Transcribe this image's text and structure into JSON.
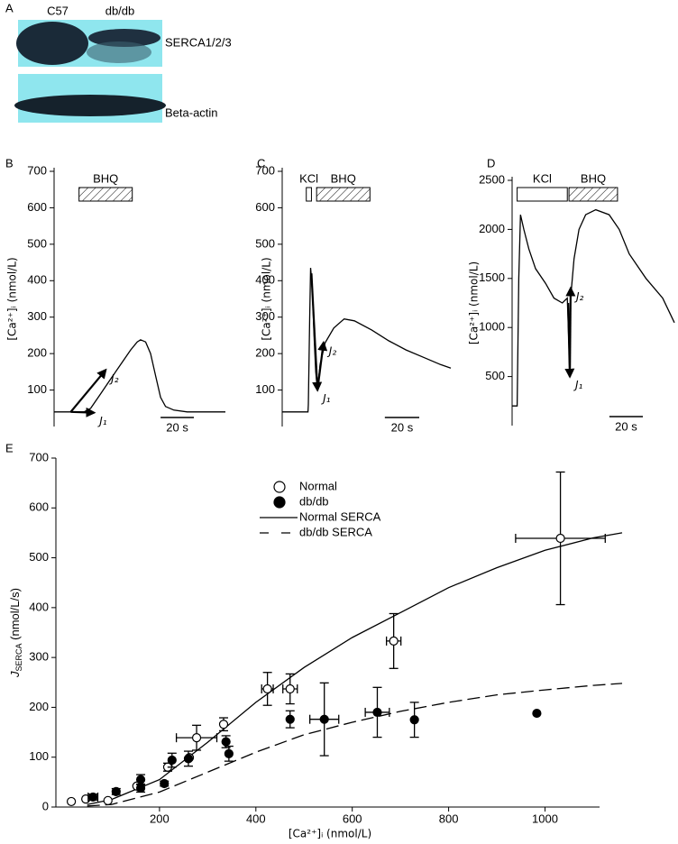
{
  "panel_labels": [
    "A",
    "B",
    "C",
    "D",
    "E"
  ],
  "blot": {
    "lanes": [
      "C57",
      "db/db"
    ],
    "bands": [
      "SERCA1/2/3",
      "Beta-actin"
    ]
  },
  "chart_data": [
    {
      "type": "line",
      "y_label": "[Ca²⁺]ᵢ (nmol/L)",
      "x": [
        0,
        18,
        22,
        28,
        34,
        40,
        46,
        50,
        52,
        55,
        58,
        61,
        64,
        67,
        72,
        80,
        103
      ],
      "series": [
        {
          "color": "#000000",
          "values": [
            40,
            40,
            50,
            90,
            130,
            170,
            210,
            232,
            238,
            232,
            200,
            140,
            80,
            55,
            45,
            40,
            40
          ]
        }
      ],
      "xlim": [
        0,
        103
      ],
      "ylim": [
        0,
        700
      ],
      "yticks": [
        100,
        200,
        300,
        400,
        500,
        600,
        700
      ],
      "treatments": [
        {
          "label": "BHQ",
          "start": 15,
          "end": 47,
          "hatched": true
        }
      ],
      "arrows": [
        {
          "label": "J₁",
          "from": [
            10,
            40
          ],
          "to": [
            24,
            38
          ]
        },
        {
          "label": "J₂",
          "from": [
            10,
            40
          ],
          "to": [
            31,
            155
          ]
        }
      ],
      "scale_bar": {
        "value": 20,
        "label": "20 s"
      }
    },
    {
      "type": "line",
      "y_label": "[Ca²⁺]ᵢ (nmol/L)",
      "x": [
        0,
        15,
        15.2,
        16,
        16.5,
        17.5,
        18.5,
        19.5,
        20.5,
        22,
        25,
        30,
        36,
        42,
        52,
        62,
        72,
        82,
        92,
        98
      ],
      "series": [
        {
          "color": "#000000",
          "values": [
            40,
            40,
            60,
            300,
            435,
            380,
            250,
            150,
            100,
            170,
            230,
            270,
            295,
            290,
            265,
            235,
            210,
            190,
            170,
            160
          ]
        }
      ],
      "xlim": [
        0,
        98
      ],
      "ylim": [
        0,
        700
      ],
      "yticks": [
        100,
        200,
        300,
        400,
        500,
        600,
        700
      ],
      "treatments": [
        {
          "label": "KCl",
          "start": 14,
          "end": 17,
          "hatched": false
        },
        {
          "label": "BHQ",
          "start": 20,
          "end": 51,
          "hatched": true
        }
      ],
      "arrows": [
        {
          "label": "J₁",
          "from": [
            17,
            420
          ],
          "to": [
            20.5,
            100
          ]
        },
        {
          "label": "J₂",
          "from": [
            20.5,
            100
          ],
          "to": [
            24,
            230
          ]
        }
      ],
      "scale_bar": {
        "value": 20,
        "label": "20 s"
      }
    },
    {
      "type": "line",
      "y_label": "[Ca²⁺]ᵢ (nmol/L)",
      "x": [
        0,
        3,
        4,
        5,
        7,
        10,
        14,
        20,
        25,
        30,
        33,
        34,
        34.5,
        35,
        37,
        40,
        44,
        50,
        58,
        64,
        70,
        80,
        90,
        97
      ],
      "series": [
        {
          "color": "#000000",
          "values": [
            200,
            200,
            1500,
            2150,
            2000,
            1800,
            1600,
            1450,
            1300,
            1250,
            1300,
            800,
            500,
            1300,
            1700,
            2000,
            2150,
            2200,
            2150,
            2000,
            1750,
            1500,
            1300,
            1050
          ]
        }
      ],
      "xlim": [
        0,
        97
      ],
      "ylim": [
        0,
        2500
      ],
      "yticks": [
        500,
        1000,
        1500,
        2000,
        2500
      ],
      "treatments": [
        {
          "label": "KCl",
          "start": 3,
          "end": 33,
          "hatched": false
        },
        {
          "label": "BHQ",
          "start": 34,
          "end": 63,
          "hatched": true
        }
      ],
      "arrows": [
        {
          "label": "J₁",
          "from": [
            33.5,
            1250
          ],
          "to": [
            34.5,
            500
          ]
        },
        {
          "label": "J₂",
          "from": [
            34.5,
            500
          ],
          "to": [
            35,
            1400
          ]
        }
      ],
      "scale_bar": {
        "value": 20,
        "label": "20 s"
      }
    },
    {
      "type": "scatter",
      "x_label": "[Ca²⁺]ᵢ (nmol/L)",
      "y_label": "J",
      "y_label_sub": "SERCA",
      "y_label_unit": " (nmol/L/s)",
      "xlim": [
        -15,
        1160
      ],
      "ylim": [
        0,
        700
      ],
      "xticks": [
        200,
        400,
        600,
        800,
        1000
      ],
      "yticks": [
        0,
        100,
        200,
        300,
        400,
        500,
        600,
        700
      ],
      "series": [
        {
          "name": "Normal",
          "kind": "points",
          "filled": false,
          "color": "#000000",
          "x": [
            17,
            47,
            93,
            153,
            217,
            262,
            277,
            333,
            424,
            471,
            686,
            1032
          ],
          "values": [
            11,
            16,
            13,
            42,
            80,
            99,
            139,
            166,
            237,
            237,
            333,
            539
          ],
          "x_err": [
            null,
            null,
            null,
            null,
            null,
            null,
            42,
            null,
            12,
            15,
            15,
            93
          ],
          "y_err": [
            null,
            null,
            null,
            null,
            8,
            null,
            25,
            13,
            33,
            30,
            55,
            133
          ]
        },
        {
          "name": "db/db",
          "kind": "points",
          "filled": true,
          "color": "#000000",
          "x": [
            62,
            110,
            161,
            161,
            210,
            226,
            260,
            338,
            344,
            471,
            542,
            652,
            729,
            983
          ],
          "values": [
            20,
            31,
            55,
            38,
            47,
            94,
            97,
            131,
            107,
            176,
            176,
            190,
            175,
            188
          ],
          "x_err": [
            10,
            null,
            null,
            null,
            null,
            null,
            null,
            null,
            null,
            null,
            30,
            25,
            null,
            null
          ],
          "y_err": [
            6,
            6,
            10,
            8,
            5,
            14,
            15,
            12,
            15,
            17,
            73,
            50,
            35,
            null
          ]
        },
        {
          "name": "Normal SERCA",
          "kind": "curve",
          "dashed": false,
          "color": "#000000",
          "x": [
            50,
            100,
            200,
            300,
            400,
            500,
            600,
            700,
            800,
            900,
            1000,
            1100,
            1160
          ],
          "values": [
            5,
            15,
            55,
            130,
            210,
            280,
            340,
            390,
            440,
            480,
            515,
            540,
            550
          ]
        },
        {
          "name": "db/db SERCA",
          "kind": "curve",
          "dashed": true,
          "color": "#000000",
          "x": [
            50,
            100,
            200,
            300,
            400,
            500,
            600,
            700,
            800,
            900,
            1000,
            1100,
            1160
          ],
          "values": [
            2,
            5,
            30,
            70,
            110,
            145,
            170,
            192,
            210,
            225,
            235,
            244,
            248
          ]
        }
      ]
    }
  ]
}
